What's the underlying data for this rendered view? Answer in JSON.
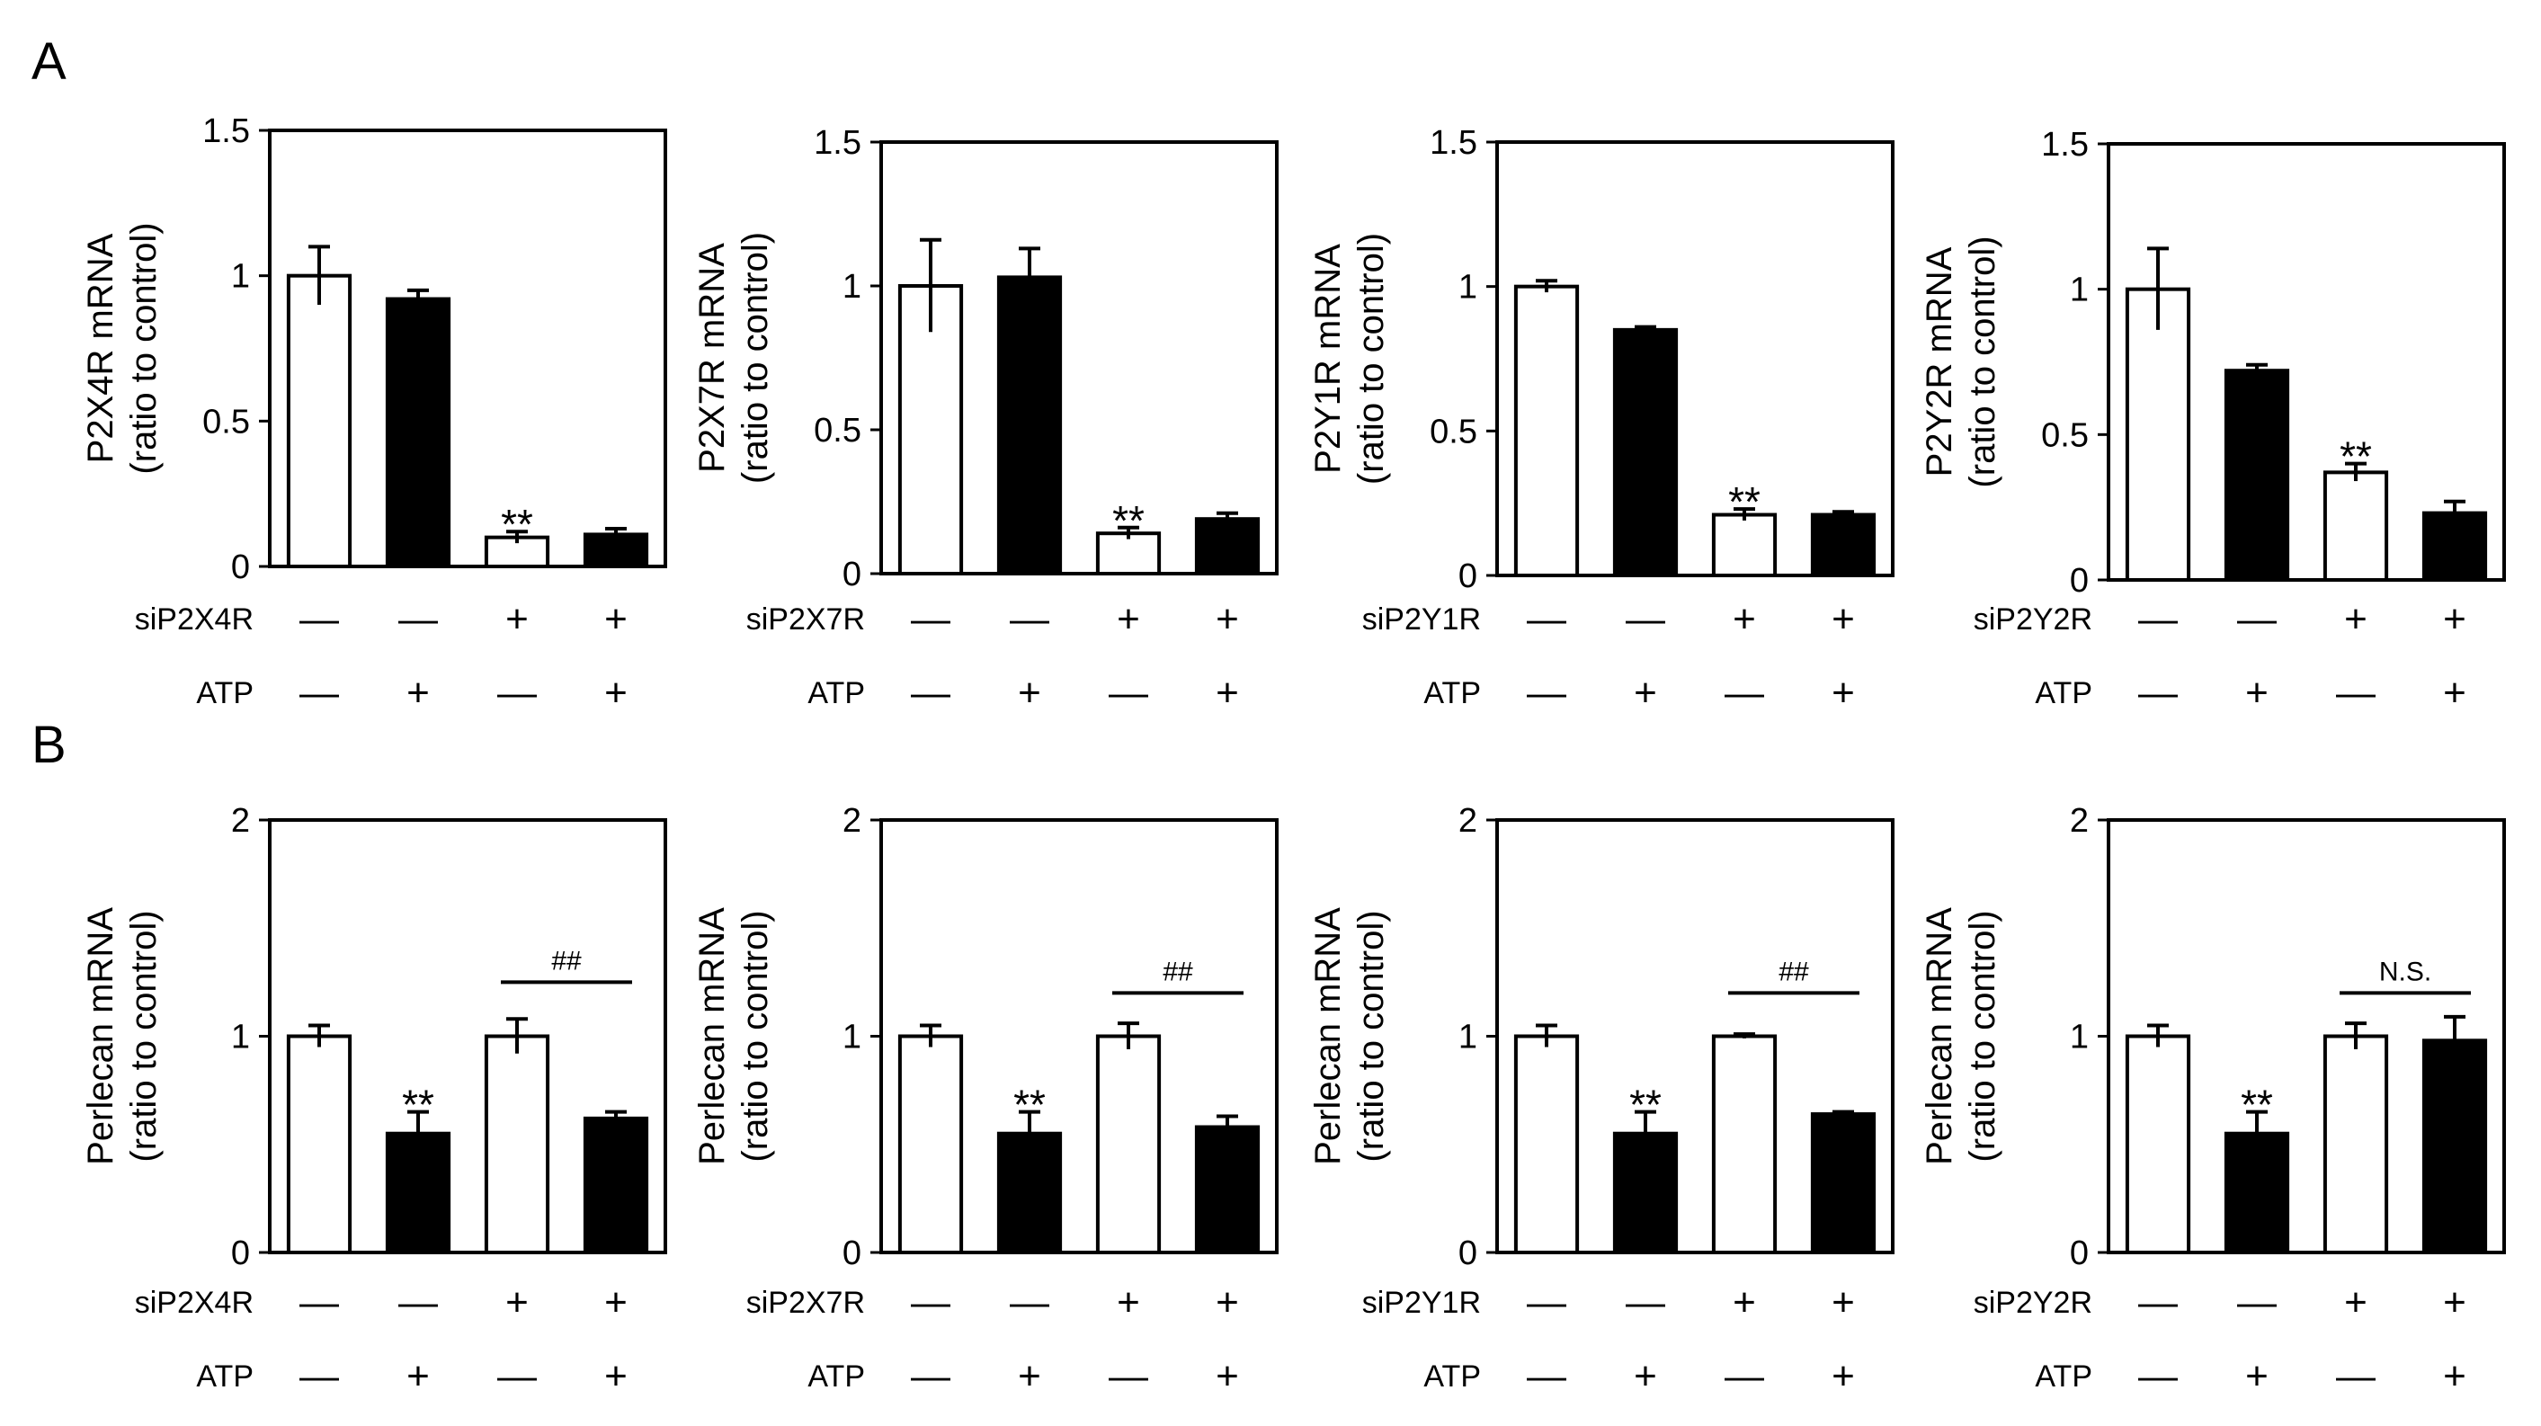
{
  "figure": {
    "panel_labels": [
      "A",
      "B"
    ]
  },
  "chart_data": [
    {
      "panel": "A",
      "type": "bar",
      "title": "",
      "xlabel": "",
      "ylabel": [
        "P2X4R mRNA",
        "(ratio to control)"
      ],
      "ylim": [
        0,
        1.5
      ],
      "yticks": [
        "0",
        "0.5",
        "1",
        "1.5"
      ],
      "conditions": [
        {
          "label": "siP2X4R",
          "marks": [
            "—",
            "—",
            "+",
            "+"
          ]
        },
        {
          "label": "ATP",
          "marks": [
            "—",
            "+",
            "—",
            "+"
          ]
        }
      ],
      "values": [
        1.0,
        0.92,
        0.1,
        0.11
      ],
      "errors": [
        0.1,
        0.03,
        0.02,
        0.02
      ],
      "fills": [
        "white",
        "black",
        "white",
        "black"
      ],
      "annotations": [
        {
          "bar": 2,
          "text": "**"
        }
      ],
      "bracket": null
    },
    {
      "panel": "A",
      "type": "bar",
      "title": "",
      "xlabel": "",
      "ylabel": [
        "P2X7R mRNA",
        "(ratio to control)"
      ],
      "ylim": [
        0,
        1.5
      ],
      "yticks": [
        "0",
        "0.5",
        "1",
        "1.5"
      ],
      "conditions": [
        {
          "label": "siP2X7R",
          "marks": [
            "—",
            "—",
            "+",
            "+"
          ]
        },
        {
          "label": "ATP",
          "marks": [
            "—",
            "+",
            "—",
            "+"
          ]
        }
      ],
      "values": [
        1.0,
        1.03,
        0.14,
        0.19
      ],
      "errors": [
        0.16,
        0.1,
        0.02,
        0.02
      ],
      "fills": [
        "white",
        "black",
        "white",
        "black"
      ],
      "annotations": [
        {
          "bar": 2,
          "text": "**"
        }
      ],
      "bracket": null
    },
    {
      "panel": "A",
      "type": "bar",
      "title": "",
      "xlabel": "",
      "ylabel": [
        "P2Y1R mRNA",
        "(ratio to control)"
      ],
      "ylim": [
        0,
        1.5
      ],
      "yticks": [
        "0",
        "0.5",
        "1",
        "1.5"
      ],
      "conditions": [
        {
          "label": "siP2Y1R",
          "marks": [
            "—",
            "—",
            "+",
            "+"
          ]
        },
        {
          "label": "ATP",
          "marks": [
            "—",
            "+",
            "—",
            "+"
          ]
        }
      ],
      "values": [
        1.0,
        0.85,
        0.21,
        0.21
      ],
      "errors": [
        0.02,
        0.01,
        0.02,
        0.01
      ],
      "fills": [
        "white",
        "black",
        "white",
        "black"
      ],
      "annotations": [
        {
          "bar": 2,
          "text": "**"
        }
      ],
      "bracket": null
    },
    {
      "panel": "A",
      "type": "bar",
      "title": "",
      "xlabel": "",
      "ylabel": [
        "P2Y2R mRNA",
        "(ratio to control)"
      ],
      "ylim": [
        0,
        1.5
      ],
      "yticks": [
        "0",
        "0.5",
        "1",
        "1.5"
      ],
      "conditions": [
        {
          "label": "siP2Y2R",
          "marks": [
            "—",
            "—",
            "+",
            "+"
          ]
        },
        {
          "label": "ATP",
          "marks": [
            "—",
            "+",
            "—",
            "+"
          ]
        }
      ],
      "values": [
        1.0,
        0.72,
        0.37,
        0.23
      ],
      "errors": [
        0.14,
        0.02,
        0.03,
        0.04
      ],
      "fills": [
        "white",
        "black",
        "white",
        "black"
      ],
      "annotations": [
        {
          "bar": 2,
          "text": "**"
        }
      ],
      "bracket": null
    },
    {
      "panel": "B",
      "type": "bar",
      "title": "",
      "xlabel": "",
      "ylabel": [
        "Perlecan mRNA",
        "(ratio to control)"
      ],
      "ylim": [
        0,
        2
      ],
      "yticks": [
        "0",
        "1",
        "2"
      ],
      "conditions": [
        {
          "label": "siP2X4R",
          "marks": [
            "—",
            "—",
            "+",
            "+"
          ]
        },
        {
          "label": "ATP",
          "marks": [
            "—",
            "+",
            "—",
            "+"
          ]
        }
      ],
      "values": [
        1.0,
        0.55,
        1.0,
        0.62
      ],
      "errors": [
        0.05,
        0.1,
        0.08,
        0.03
      ],
      "fills": [
        "white",
        "black",
        "white",
        "black"
      ],
      "annotations": [
        {
          "bar": 1,
          "text": "**"
        }
      ],
      "bracket": {
        "from": 2,
        "to": 3,
        "y": 1.25,
        "text": "##"
      }
    },
    {
      "panel": "B",
      "type": "bar",
      "title": "",
      "xlabel": "",
      "ylabel": [
        "Perlecan mRNA",
        "(ratio to control)"
      ],
      "ylim": [
        0,
        2
      ],
      "yticks": [
        "0",
        "1",
        "2"
      ],
      "conditions": [
        {
          "label": "siP2X7R",
          "marks": [
            "—",
            "—",
            "+",
            "+"
          ]
        },
        {
          "label": "ATP",
          "marks": [
            "—",
            "+",
            "—",
            "+"
          ]
        }
      ],
      "values": [
        1.0,
        0.55,
        1.0,
        0.58
      ],
      "errors": [
        0.05,
        0.1,
        0.06,
        0.05
      ],
      "fills": [
        "white",
        "black",
        "white",
        "black"
      ],
      "annotations": [
        {
          "bar": 1,
          "text": "**"
        }
      ],
      "bracket": {
        "from": 2,
        "to": 3,
        "y": 1.2,
        "text": "##"
      }
    },
    {
      "panel": "B",
      "type": "bar",
      "title": "",
      "xlabel": "",
      "ylabel": [
        "Perlecan mRNA",
        "(ratio to control)"
      ],
      "ylim": [
        0,
        2
      ],
      "yticks": [
        "0",
        "1",
        "2"
      ],
      "conditions": [
        {
          "label": "siP2Y1R",
          "marks": [
            "—",
            "—",
            "+",
            "+"
          ]
        },
        {
          "label": "ATP",
          "marks": [
            "—",
            "+",
            "—",
            "+"
          ]
        }
      ],
      "values": [
        1.0,
        0.55,
        1.0,
        0.64
      ],
      "errors": [
        0.05,
        0.1,
        0.01,
        0.01
      ],
      "fills": [
        "white",
        "black",
        "white",
        "black"
      ],
      "annotations": [
        {
          "bar": 1,
          "text": "**"
        }
      ],
      "bracket": {
        "from": 2,
        "to": 3,
        "y": 1.2,
        "text": "##"
      }
    },
    {
      "panel": "B",
      "type": "bar",
      "title": "",
      "xlabel": "",
      "ylabel": [
        "Perlecan mRNA",
        "(ratio to control)"
      ],
      "ylim": [
        0,
        2
      ],
      "yticks": [
        "0",
        "1",
        "2"
      ],
      "conditions": [
        {
          "label": "siP2Y2R",
          "marks": [
            "—",
            "—",
            "+",
            "+"
          ]
        },
        {
          "label": "ATP",
          "marks": [
            "—",
            "+",
            "—",
            "+"
          ]
        }
      ],
      "values": [
        1.0,
        0.55,
        1.0,
        0.98
      ],
      "errors": [
        0.05,
        0.1,
        0.06,
        0.11
      ],
      "fills": [
        "white",
        "black",
        "white",
        "black"
      ],
      "annotations": [
        {
          "bar": 1,
          "text": "**"
        }
      ],
      "bracket": {
        "from": 2,
        "to": 3,
        "y": 1.2,
        "text": "N.S."
      }
    }
  ]
}
